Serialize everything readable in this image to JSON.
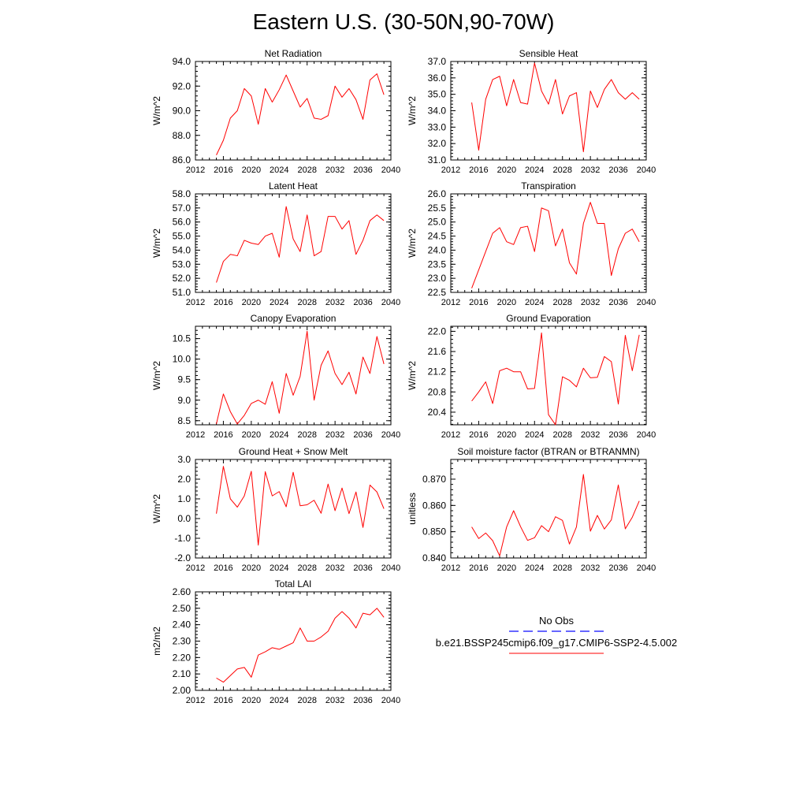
{
  "title": "Eastern U.S. (30-50N,90-70W)",
  "colors": {
    "series": "#ff0000",
    "obs": "#3333ff",
    "axis": "#000000"
  },
  "legend": {
    "entries": [
      {
        "label": "No Obs",
        "style": "dashed",
        "color": "#3333ff"
      },
      {
        "label": "b.e21.BSSP245cmip6.f09_g17.CMIP6-SSP2-4.5.002",
        "style": "solid",
        "color": "#ff0000"
      }
    ]
  },
  "chart_data": [
    {
      "type": "line",
      "title": "Net Radiation",
      "ylabel": "W/m^2",
      "xlabel": "",
      "xlim": [
        2012,
        2040
      ],
      "ylim": [
        86,
        94
      ],
      "xticks": [
        2012,
        2016,
        2020,
        2024,
        2028,
        2032,
        2036,
        2040
      ],
      "xtick_labels": [
        "2012",
        "2016",
        "2020",
        "2024",
        "2028",
        "2032",
        "2036",
        "2040"
      ],
      "yticks": [
        86,
        88,
        90,
        92,
        94
      ],
      "ytick_labels": [
        "86.0",
        "88.0",
        "90.0",
        "92.0",
        "94.0"
      ],
      "x": [
        2015,
        2016,
        2017,
        2018,
        2019,
        2020,
        2021,
        2022,
        2023,
        2024,
        2025,
        2026,
        2027,
        2028,
        2029,
        2030,
        2031,
        2032,
        2033,
        2034,
        2035,
        2036,
        2037,
        2038,
        2039
      ],
      "series": [
        {
          "values": [
            86.4,
            87.6,
            89.4,
            90.0,
            91.8,
            91.2,
            88.9,
            91.8,
            90.7,
            91.7,
            92.9,
            91.6,
            90.3,
            91.0,
            89.4,
            89.3,
            89.6,
            92.0,
            91.1,
            91.8,
            90.9,
            89.3,
            92.5,
            93.0,
            91.3
          ]
        }
      ]
    },
    {
      "type": "line",
      "title": "Sensible Heat",
      "ylabel": "W/m^2",
      "xlabel": "",
      "xlim": [
        2012,
        2040
      ],
      "ylim": [
        31,
        37
      ],
      "xticks": [
        2012,
        2016,
        2020,
        2024,
        2028,
        2032,
        2036,
        2040
      ],
      "xtick_labels": [
        "2012",
        "2016",
        "2020",
        "2024",
        "2028",
        "2032",
        "2036",
        "2040"
      ],
      "yticks": [
        31,
        32,
        33,
        34,
        35,
        36,
        37
      ],
      "ytick_labels": [
        "31.0",
        "32.0",
        "33.0",
        "34.0",
        "35.0",
        "36.0",
        "37.0"
      ],
      "x": [
        2015,
        2016,
        2017,
        2018,
        2019,
        2020,
        2021,
        2022,
        2023,
        2024,
        2025,
        2026,
        2027,
        2028,
        2029,
        2030,
        2031,
        2032,
        2033,
        2034,
        2035,
        2036,
        2037,
        2038,
        2039
      ],
      "series": [
        {
          "values": [
            34.5,
            31.6,
            34.7,
            35.9,
            36.1,
            34.3,
            35.9,
            34.5,
            34.4,
            36.9,
            35.2,
            34.4,
            35.9,
            33.8,
            34.9,
            35.1,
            31.5,
            35.2,
            34.2,
            35.3,
            35.9,
            35.1,
            34.7,
            35.1,
            34.7
          ]
        }
      ]
    },
    {
      "type": "line",
      "title": "Latent Heat",
      "ylabel": "W/m^2",
      "xlabel": "",
      "xlim": [
        2012,
        2040
      ],
      "ylim": [
        51,
        58
      ],
      "xticks": [
        2012,
        2016,
        2020,
        2024,
        2028,
        2032,
        2036,
        2040
      ],
      "xtick_labels": [
        "2012",
        "2016",
        "2020",
        "2024",
        "2028",
        "2032",
        "2036",
        "2040"
      ],
      "yticks": [
        51,
        52,
        53,
        54,
        55,
        56,
        57,
        58
      ],
      "ytick_labels": [
        "51.0",
        "52.0",
        "53.0",
        "54.0",
        "55.0",
        "56.0",
        "57.0",
        "58.0"
      ],
      "x": [
        2015,
        2016,
        2017,
        2018,
        2019,
        2020,
        2021,
        2022,
        2023,
        2024,
        2025,
        2026,
        2027,
        2028,
        2029,
        2030,
        2031,
        2032,
        2033,
        2034,
        2035,
        2036,
        2037,
        2038,
        2039
      ],
      "series": [
        {
          "values": [
            51.7,
            53.2,
            53.7,
            53.6,
            54.7,
            54.5,
            54.4,
            55.0,
            55.2,
            53.5,
            57.1,
            54.8,
            53.9,
            56.5,
            53.6,
            53.9,
            56.4,
            56.4,
            55.5,
            56.1,
            53.7,
            54.7,
            56.1,
            56.5,
            56.1
          ]
        }
      ]
    },
    {
      "type": "line",
      "title": "Transpiration",
      "ylabel": "W/m^2",
      "xlabel": "",
      "xlim": [
        2012,
        2040
      ],
      "ylim": [
        22.5,
        26
      ],
      "xticks": [
        2012,
        2016,
        2020,
        2024,
        2028,
        2032,
        2036,
        2040
      ],
      "xtick_labels": [
        "2012",
        "2016",
        "2020",
        "2024",
        "2028",
        "2032",
        "2036",
        "2040"
      ],
      "yticks": [
        22.5,
        23,
        23.5,
        24,
        24.5,
        25,
        25.5,
        26
      ],
      "ytick_labels": [
        "22.5",
        "23.0",
        "23.5",
        "24.0",
        "24.5",
        "25.0",
        "25.5",
        "26.0"
      ],
      "x": [
        2015,
        2016,
        2017,
        2018,
        2019,
        2020,
        2021,
        2022,
        2023,
        2024,
        2025,
        2026,
        2027,
        2028,
        2029,
        2030,
        2031,
        2032,
        2033,
        2034,
        2035,
        2036,
        2037,
        2038,
        2039
      ],
      "series": [
        {
          "values": [
            22.65,
            23.3,
            23.95,
            24.6,
            24.8,
            24.3,
            24.2,
            24.8,
            24.85,
            23.95,
            25.5,
            25.4,
            24.15,
            24.75,
            23.55,
            23.15,
            24.95,
            25.7,
            24.95,
            24.95,
            23.1,
            24.05,
            24.6,
            24.75,
            24.3
          ]
        }
      ]
    },
    {
      "type": "line",
      "title": "Canopy Evaporation",
      "ylabel": "W/m^2",
      "xlabel": "",
      "xlim": [
        2012,
        2040
      ],
      "ylim": [
        8.4,
        10.8
      ],
      "xticks": [
        2012,
        2016,
        2020,
        2024,
        2028,
        2032,
        2036,
        2040
      ],
      "xtick_labels": [
        "2012",
        "2016",
        "2020",
        "2024",
        "2028",
        "2032",
        "2036",
        "2040"
      ],
      "yticks": [
        8.5,
        9.0,
        9.5,
        10.0,
        10.5
      ],
      "ytick_labels": [
        "8.5",
        "9.0",
        "9.5",
        "10.0",
        "10.5"
      ],
      "x": [
        2015,
        2016,
        2017,
        2018,
        2019,
        2020,
        2021,
        2022,
        2023,
        2024,
        2025,
        2026,
        2027,
        2028,
        2029,
        2030,
        2031,
        2032,
        2033,
        2034,
        2035,
        2036,
        2037,
        2038,
        2039
      ],
      "series": [
        {
          "values": [
            8.42,
            9.15,
            8.72,
            8.42,
            8.63,
            8.92,
            9.0,
            8.9,
            9.45,
            8.68,
            9.65,
            9.12,
            9.58,
            10.68,
            9.0,
            9.85,
            10.2,
            9.65,
            9.38,
            9.68,
            9.15,
            10.05,
            9.65,
            10.55,
            9.88
          ]
        }
      ]
    },
    {
      "type": "line",
      "title": "Ground Evaporation",
      "ylabel": "W/m^2",
      "xlabel": "",
      "xlim": [
        2012,
        2040
      ],
      "ylim": [
        20.15,
        22.1
      ],
      "xticks": [
        2012,
        2016,
        2020,
        2024,
        2028,
        2032,
        2036,
        2040
      ],
      "xtick_labels": [
        "2012",
        "2016",
        "2020",
        "2024",
        "2028",
        "2032",
        "2036",
        "2040"
      ],
      "yticks": [
        20.4,
        20.8,
        21.2,
        21.6,
        22.0
      ],
      "ytick_labels": [
        "20.4",
        "20.8",
        "21.2",
        "21.6",
        "22.0"
      ],
      "x": [
        2015,
        2016,
        2017,
        2018,
        2019,
        2020,
        2021,
        2022,
        2023,
        2024,
        2025,
        2026,
        2027,
        2028,
        2029,
        2030,
        2031,
        2032,
        2033,
        2034,
        2035,
        2036,
        2037,
        2038,
        2039
      ],
      "series": [
        {
          "values": [
            20.62,
            20.8,
            21.0,
            20.57,
            21.22,
            21.27,
            21.2,
            21.2,
            20.86,
            20.87,
            21.97,
            20.35,
            20.15,
            21.1,
            21.03,
            20.9,
            21.27,
            21.08,
            21.09,
            21.5,
            21.4,
            20.56,
            21.92,
            21.22,
            21.93
          ]
        }
      ]
    },
    {
      "type": "line",
      "title": "Ground Heat + Snow Melt",
      "ylabel": "W/m^2",
      "xlabel": "",
      "xlim": [
        2012,
        2040
      ],
      "ylim": [
        -2,
        3
      ],
      "xticks": [
        2012,
        2016,
        2020,
        2024,
        2028,
        2032,
        2036,
        2040
      ],
      "xtick_labels": [
        "2012",
        "2016",
        "2020",
        "2024",
        "2028",
        "2032",
        "2036",
        "2040"
      ],
      "yticks": [
        -2,
        -1,
        0,
        1,
        2,
        3
      ],
      "ytick_labels": [
        "-2.0",
        "-1.0",
        "0.0",
        "1.0",
        "2.0",
        "3.0"
      ],
      "x": [
        2015,
        2016,
        2017,
        2018,
        2019,
        2020,
        2021,
        2022,
        2023,
        2024,
        2025,
        2026,
        2027,
        2028,
        2029,
        2030,
        2031,
        2032,
        2033,
        2034,
        2035,
        2036,
        2037,
        2038,
        2039
      ],
      "series": [
        {
          "values": [
            0.25,
            2.65,
            1.0,
            0.58,
            1.15,
            2.4,
            -1.35,
            2.38,
            1.15,
            1.37,
            0.6,
            2.35,
            0.65,
            0.7,
            0.93,
            0.27,
            1.75,
            0.4,
            1.55,
            0.25,
            1.35,
            -0.45,
            1.7,
            1.35,
            0.5
          ]
        }
      ]
    },
    {
      "type": "line",
      "title": "Soil moisture factor (BTRAN or BTRANMN)",
      "ylabel": "unitless",
      "xlabel": "",
      "xlim": [
        2012,
        2040
      ],
      "ylim": [
        0.84,
        0.8775
      ],
      "xticks": [
        2012,
        2016,
        2020,
        2024,
        2028,
        2032,
        2036,
        2040
      ],
      "xtick_labels": [
        "2012",
        "2016",
        "2020",
        "2024",
        "2028",
        "2032",
        "2036",
        "2040"
      ],
      "yticks": [
        0.84,
        0.85,
        0.86,
        0.87
      ],
      "ytick_labels": [
        "0.840",
        "0.850",
        "0.860",
        "0.870"
      ],
      "x": [
        2015,
        2016,
        2017,
        2018,
        2019,
        2020,
        2021,
        2022,
        2023,
        2024,
        2025,
        2026,
        2027,
        2028,
        2029,
        2030,
        2031,
        2032,
        2033,
        2034,
        2035,
        2036,
        2037,
        2038,
        2039
      ],
      "series": [
        {
          "values": [
            0.8518,
            0.8474,
            0.8495,
            0.8466,
            0.8408,
            0.8518,
            0.858,
            0.8519,
            0.8467,
            0.8477,
            0.8523,
            0.85,
            0.8557,
            0.8543,
            0.8453,
            0.8518,
            0.8718,
            0.8502,
            0.8562,
            0.851,
            0.8545,
            0.8678,
            0.8511,
            0.8555,
            0.8617
          ]
        }
      ]
    },
    {
      "type": "line",
      "title": "Total LAI",
      "ylabel": "m2/m2",
      "xlabel": "",
      "xlim": [
        2012,
        2040
      ],
      "ylim": [
        2.0,
        2.6
      ],
      "xticks": [
        2012,
        2016,
        2020,
        2024,
        2028,
        2032,
        2036,
        2040
      ],
      "xtick_labels": [
        "2012",
        "2016",
        "2020",
        "2024",
        "2028",
        "2032",
        "2036",
        "2040"
      ],
      "yticks": [
        2.0,
        2.1,
        2.2,
        2.3,
        2.4,
        2.5,
        2.6
      ],
      "ytick_labels": [
        "2.00",
        "2.10",
        "2.20",
        "2.30",
        "2.40",
        "2.50",
        "2.60"
      ],
      "x": [
        2015,
        2016,
        2017,
        2018,
        2019,
        2020,
        2021,
        2022,
        2023,
        2024,
        2025,
        2026,
        2027,
        2028,
        2029,
        2030,
        2031,
        2032,
        2033,
        2034,
        2035,
        2036,
        2037,
        2038,
        2039
      ],
      "series": [
        {
          "values": [
            2.075,
            2.05,
            2.09,
            2.13,
            2.14,
            2.08,
            2.215,
            2.235,
            2.26,
            2.25,
            2.27,
            2.29,
            2.38,
            2.3,
            2.3,
            2.325,
            2.36,
            2.44,
            2.48,
            2.44,
            2.38,
            2.47,
            2.46,
            2.5,
            2.445
          ]
        }
      ]
    }
  ]
}
